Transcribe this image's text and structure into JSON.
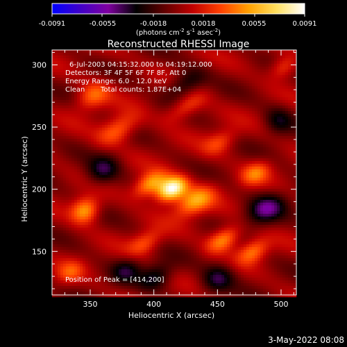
{
  "colorbar": {
    "ticks": [
      "-0.0091",
      "-0.0055",
      "-0.0018",
      "0.0018",
      "0.0055",
      "0.0091"
    ],
    "tick_values": [
      -0.0091,
      -0.0055,
      -0.0018,
      0.0018,
      0.0055,
      0.0091
    ],
    "range": [
      -0.0091,
      0.0091
    ],
    "unit_text": "(photons cm",
    "unit_exp1": "-2",
    "unit_mid": " s",
    "unit_exp2": "-1",
    "unit_mid2": " asec",
    "unit_exp3": "-2",
    "unit_close": ")",
    "stops": [
      "#0000ff",
      "#4000c8",
      "#8000a0",
      "#000000",
      "#600000",
      "#c00000",
      "#ff4000",
      "#ffa000",
      "#ffe060",
      "#ffffff"
    ]
  },
  "chart_data": {
    "type": "heatmap",
    "title": "Reconstructed RHESSI Image",
    "xlabel": "Heliocentric X (arcsec)",
    "ylabel": "Heliocentric Y (arcsec)",
    "xlim": [
      320,
      512
    ],
    "ylim": [
      115,
      312
    ],
    "x_ticks": [
      350,
      400,
      450,
      500
    ],
    "y_ticks": [
      150,
      200,
      250,
      300
    ],
    "annotations": {
      "time": "6-Jul-2003 04:15:32.000 to 04:19:12.000",
      "detectors": "Detectors: 3F 4F 5F 6F 7F 8F, Att 0",
      "energy": "Energy Range: 6.0 - 12.0 keV",
      "clean": "Clean",
      "counts": "Total counts: 1.87E+04",
      "peak": "Position of Peak = [414,200]"
    },
    "peak": [
      414,
      200
    ],
    "sources": [
      {
        "x": 414,
        "y": 200,
        "amp": 1.0,
        "sx": 9,
        "sy": 6
      },
      {
        "x": 397,
        "y": 204,
        "amp": 0.6,
        "sx": 10,
        "sy": 6
      },
      {
        "x": 432,
        "y": 190,
        "amp": 0.55,
        "sx": 12,
        "sy": 7
      },
      {
        "x": 346,
        "y": 183,
        "amp": 0.6,
        "sx": 8,
        "sy": 7
      },
      {
        "x": 455,
        "y": 160,
        "amp": 0.55,
        "sx": 10,
        "sy": 6
      },
      {
        "x": 478,
        "y": 150,
        "amp": 0.45,
        "sx": 9,
        "sy": 6
      },
      {
        "x": 372,
        "y": 248,
        "amp": 0.45,
        "sx": 12,
        "sy": 7
      },
      {
        "x": 352,
        "y": 275,
        "amp": 0.4,
        "sx": 10,
        "sy": 7
      },
      {
        "x": 425,
        "y": 266,
        "amp": 0.35,
        "sx": 12,
        "sy": 6
      },
      {
        "x": 480,
        "y": 213,
        "amp": 0.4,
        "sx": 9,
        "sy": 6
      },
      {
        "x": 393,
        "y": 157,
        "amp": 0.35,
        "sx": 10,
        "sy": 6
      },
      {
        "x": 502,
        "y": 298,
        "amp": 0.35,
        "sx": 8,
        "sy": 6
      },
      {
        "x": 452,
        "y": 238,
        "amp": 0.3,
        "sx": 10,
        "sy": 6
      },
      {
        "x": 334,
        "y": 133,
        "amp": 0.3,
        "sx": 8,
        "sy": 6
      },
      {
        "x": 488,
        "y": 184,
        "amp": -0.45,
        "sx": 12,
        "sy": 8
      },
      {
        "x": 360,
        "y": 215,
        "amp": -0.4,
        "sx": 10,
        "sy": 8
      },
      {
        "x": 425,
        "y": 285,
        "amp": -0.35,
        "sx": 12,
        "sy": 7
      },
      {
        "x": 450,
        "y": 128,
        "amp": -0.4,
        "sx": 10,
        "sy": 8
      },
      {
        "x": 402,
        "y": 130,
        "amp": -0.35,
        "sx": 10,
        "sy": 7
      },
      {
        "x": 378,
        "y": 135,
        "amp": -0.3,
        "sx": 9,
        "sy": 7
      },
      {
        "x": 498,
        "y": 255,
        "amp": -0.3,
        "sx": 8,
        "sy": 8
      }
    ],
    "stripe": {
      "amp": 0.18,
      "kx": 0.09,
      "ky": 0.16
    }
  },
  "footer_date": "3-May-2022 08:08"
}
